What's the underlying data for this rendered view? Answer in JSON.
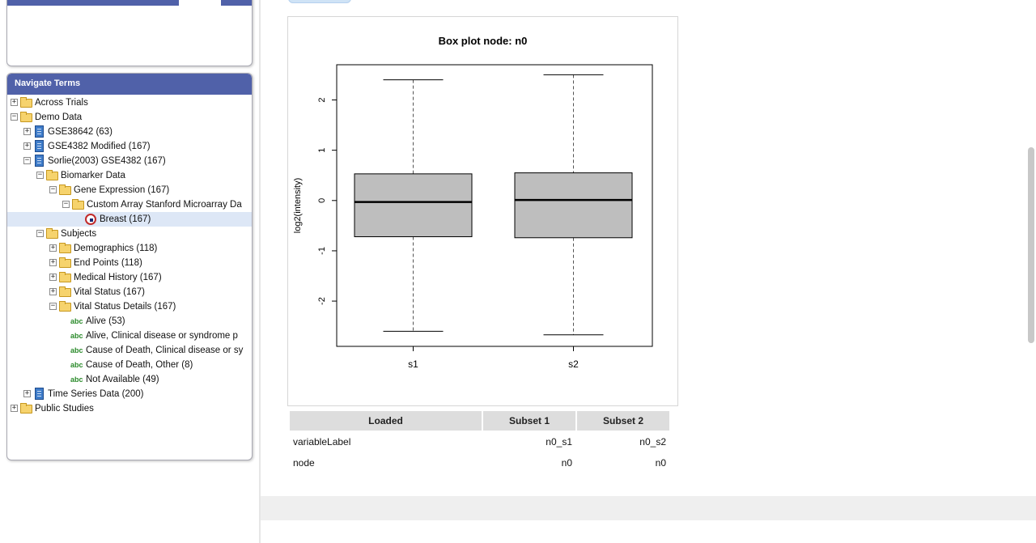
{
  "nav": {
    "title": "Navigate Terms",
    "items": [
      {
        "label": "Across Trials",
        "icon": "folder-icon",
        "toggle": "+"
      },
      {
        "label": "Demo Data",
        "icon": "folder-open-icon",
        "toggle": "−"
      },
      {
        "label": "GSE38642 (63)",
        "icon": "study-icon",
        "toggle": "+"
      },
      {
        "label": "GSE4382 Modified (167)",
        "icon": "study-icon",
        "toggle": "+"
      },
      {
        "label": "Sorlie(2003) GSE4382 (167)",
        "icon": "study-icon",
        "toggle": "−"
      },
      {
        "label": "Biomarker Data",
        "icon": "folder-open-icon",
        "toggle": "−"
      },
      {
        "label": "Gene Expression (167)",
        "icon": "folder-open-icon",
        "toggle": "−"
      },
      {
        "label": "Custom Array Stanford Microarray Da",
        "icon": "folder-open-icon",
        "toggle": "−"
      },
      {
        "label": "Breast (167)",
        "icon": "highdim-leaf-icon",
        "selected": true
      },
      {
        "label": "Subjects",
        "icon": "folder-open-icon",
        "toggle": "−"
      },
      {
        "label": "Demographics (118)",
        "icon": "folder-icon",
        "toggle": "+"
      },
      {
        "label": "End Points (118)",
        "icon": "folder-icon",
        "toggle": "+"
      },
      {
        "label": "Medical History (167)",
        "icon": "folder-icon",
        "toggle": "+"
      },
      {
        "label": "Vital Status (167)",
        "icon": "folder-icon",
        "toggle": "+"
      },
      {
        "label": "Vital Status Details (167)",
        "icon": "folder-open-icon",
        "toggle": "−"
      },
      {
        "label": "Alive (53)",
        "icon": "abc-icon"
      },
      {
        "label": "Alive, Clinical disease or syndrome p",
        "icon": "abc-icon"
      },
      {
        "label": "Cause of Death, Clinical disease or sy",
        "icon": "abc-icon"
      },
      {
        "label": "Cause of Death, Other (8)",
        "icon": "abc-icon"
      },
      {
        "label": "Not Available (49)",
        "icon": "abc-icon"
      },
      {
        "label": "Time Series Data (200)",
        "icon": "study-icon",
        "toggle": "+"
      },
      {
        "label": "Public Studies",
        "icon": "folder-icon",
        "toggle": "+"
      }
    ],
    "abc_text": "abc"
  },
  "chart_title": "Box plot node: n0",
  "chart_data": {
    "type": "box",
    "title": "Box plot node: n0",
    "xlabel": "",
    "ylabel": "log2(intensity)",
    "categories": [
      "s1",
      "s2"
    ],
    "boxes": [
      {
        "name": "s1",
        "whisker_low": -2.6,
        "q1": -0.72,
        "median": -0.03,
        "q3": 0.53,
        "whisker_high": 2.4
      },
      {
        "name": "s2",
        "whisker_low": -2.67,
        "q1": -0.74,
        "median": 0.01,
        "q3": 0.55,
        "whisker_high": 2.5
      }
    ],
    "y_ticks": [
      "-2",
      "-1",
      "0",
      "1",
      "2"
    ],
    "ylim": [
      -2.9,
      2.7
    ],
    "grid": false,
    "box_color": "#bebebe"
  },
  "table": {
    "headers": [
      "Loaded",
      "Subset 1",
      "Subset 2"
    ],
    "rows": [
      {
        "label": "variableLabel",
        "s1": "n0_s1",
        "s2": "n0_s2"
      },
      {
        "label": "node",
        "s1": "n0",
        "s2": "n0"
      }
    ]
  },
  "colors": {
    "panel_header": "#5061a9",
    "selected_row": "#dde7f6",
    "table_header": "#dddddd"
  }
}
